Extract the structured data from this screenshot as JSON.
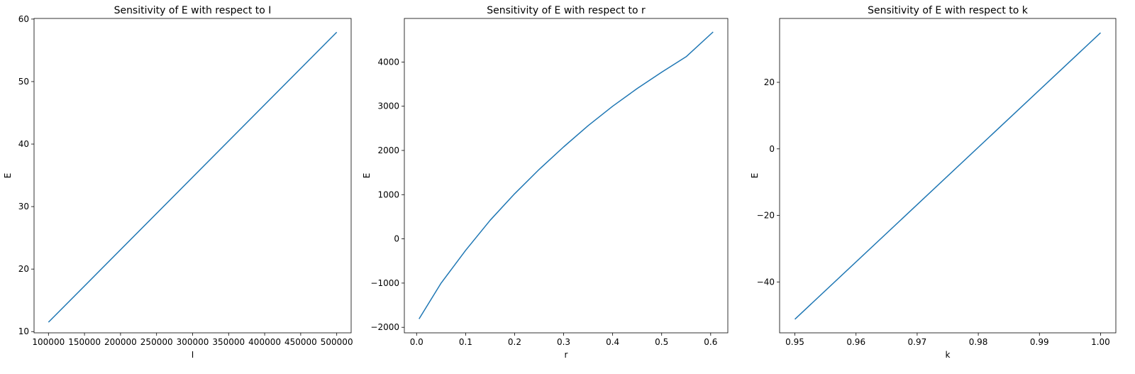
{
  "chart_data": [
    {
      "type": "line",
      "title": "Sensitivity of E with respect to I",
      "xlabel": "I",
      "ylabel": "E",
      "xlim": [
        80000,
        520000
      ],
      "ylim": [
        9.8,
        60.1
      ],
      "grid": false,
      "xticks": [
        100000,
        150000,
        200000,
        250000,
        300000,
        350000,
        400000,
        450000,
        500000
      ],
      "xtick_labels": [
        "100000",
        "150000",
        "200000",
        "250000",
        "300000",
        "350000",
        "400000",
        "450000",
        "500000"
      ],
      "yticks": [
        10,
        20,
        30,
        40,
        50,
        60
      ],
      "ytick_labels": [
        "10",
        "20",
        "30",
        "40",
        "50",
        "60"
      ],
      "series": [
        {
          "x": [
            100000,
            500000
          ],
          "y": [
            11.5,
            57.9
          ]
        }
      ]
    },
    {
      "type": "line",
      "title": "Sensitivity of E with respect to r",
      "xlabel": "r",
      "ylabel": "E",
      "xlim": [
        -0.025,
        0.635
      ],
      "ylim": [
        -2125,
        4985
      ],
      "grid": false,
      "xticks": [
        0.0,
        0.1,
        0.2,
        0.3,
        0.4,
        0.5,
        0.6
      ],
      "xtick_labels": [
        "0.0",
        "0.1",
        "0.2",
        "0.3",
        "0.4",
        "0.5",
        "0.6"
      ],
      "yticks": [
        -2000,
        -1000,
        0,
        1000,
        2000,
        3000,
        4000
      ],
      "ytick_labels": [
        "−2000",
        "−1000",
        "0",
        "1000",
        "2000",
        "3000",
        "4000"
      ],
      "series": [
        {
          "x": [
            0.005,
            0.05,
            0.1,
            0.15,
            0.2,
            0.25,
            0.3,
            0.35,
            0.4,
            0.45,
            0.5,
            0.55,
            0.605
          ],
          "y": [
            -1810,
            -1000,
            -260,
            420,
            1020,
            1570,
            2080,
            2560,
            3000,
            3400,
            3770,
            4120,
            4680
          ]
        }
      ]
    },
    {
      "type": "line",
      "title": "Sensitivity of E with respect to k",
      "xlabel": "k",
      "ylabel": "E",
      "xlim": [
        0.9475,
        1.0025
      ],
      "ylim": [
        -55.3,
        39.2
      ],
      "grid": false,
      "xticks": [
        0.95,
        0.96,
        0.97,
        0.98,
        0.99,
        1.0
      ],
      "xtick_labels": [
        "0.95",
        "0.96",
        "0.97",
        "0.98",
        "0.99",
        "1.00"
      ],
      "yticks": [
        -40,
        -20,
        0,
        20
      ],
      "ytick_labels": [
        "−40",
        "−20",
        "0",
        "20"
      ],
      "series": [
        {
          "x": [
            0.95,
            1.0
          ],
          "y": [
            -51.2,
            34.9
          ]
        }
      ]
    }
  ],
  "colors": {
    "line": "#1f77b4",
    "axes": "#000000",
    "background": "#ffffff"
  }
}
